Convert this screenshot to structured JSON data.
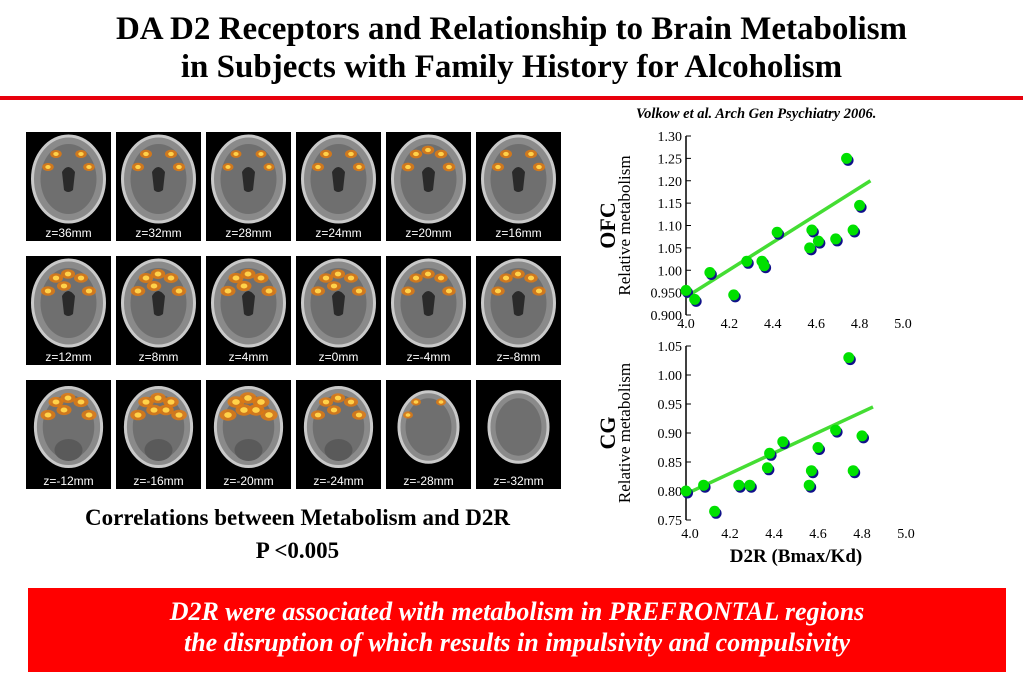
{
  "title": {
    "line1": "DA D2 Receptors and Relationship to Brain Metabolism",
    "line2": "in Subjects with Family History for Alcoholism"
  },
  "citation": "Volkow et al. Arch Gen Psychiatry 2006.",
  "brain_slices": [
    {
      "label": "z=36mm",
      "activation": 0.35
    },
    {
      "label": "z=32mm",
      "activation": 0.4
    },
    {
      "label": "z=28mm",
      "activation": 0.3
    },
    {
      "label": "z=24mm",
      "activation": 0.4
    },
    {
      "label": "z=20mm",
      "activation": 0.45
    },
    {
      "label": "z=16mm",
      "activation": 0.4
    },
    {
      "label": "z=12mm",
      "activation": 0.6
    },
    {
      "label": "z=8mm",
      "activation": 0.65
    },
    {
      "label": "z=4mm",
      "activation": 0.7
    },
    {
      "label": "z=0mm",
      "activation": 0.6
    },
    {
      "label": "z=-4mm",
      "activation": 0.55
    },
    {
      "label": "z=-8mm",
      "activation": 0.55
    },
    {
      "label": "z=-12mm",
      "activation": 0.7
    },
    {
      "label": "z=-16mm",
      "activation": 0.75
    },
    {
      "label": "z=-20mm",
      "activation": 0.9
    },
    {
      "label": "z=-24mm",
      "activation": 0.6
    },
    {
      "label": "z=-28mm",
      "activation": 0.2
    },
    {
      "label": "z=-32mm",
      "activation": 0.0
    }
  ],
  "captions": {
    "line1": "Correlations between Metabolism and D2R",
    "line2": "P <0.005"
  },
  "chart_data": [
    {
      "type": "scatter",
      "region": "OFC",
      "ylabel": "Relative metabolism",
      "xlabel": "",
      "xlim": [
        4.0,
        5.0
      ],
      "ylim": [
        0.9,
        1.3
      ],
      "xticks": [
        "4.0",
        "4.2",
        "4.4",
        "4.6",
        "4.8",
        "5.0"
      ],
      "yticks": [
        "0.900",
        "0.950",
        "1.00",
        "1.05",
        "1.10",
        "1.15",
        "1.20",
        "1.25",
        "1.30"
      ],
      "point_color": "#00e000",
      "fit_line_color": "#44dd33",
      "grid": false,
      "points": [
        {
          "x": 4.0,
          "y": 0.955
        },
        {
          "x": 4.04,
          "y": 0.935
        },
        {
          "x": 4.11,
          "y": 0.995
        },
        {
          "x": 4.22,
          "y": 0.945
        },
        {
          "x": 4.28,
          "y": 1.02
        },
        {
          "x": 4.35,
          "y": 1.02
        },
        {
          "x": 4.36,
          "y": 1.01
        },
        {
          "x": 4.42,
          "y": 1.085
        },
        {
          "x": 4.57,
          "y": 1.05
        },
        {
          "x": 4.58,
          "y": 1.09
        },
        {
          "x": 4.61,
          "y": 1.065
        },
        {
          "x": 4.69,
          "y": 1.07
        },
        {
          "x": 4.74,
          "y": 1.25
        },
        {
          "x": 4.77,
          "y": 1.09
        },
        {
          "x": 4.8,
          "y": 1.145
        }
      ],
      "fit_line": [
        [
          4.0,
          0.94
        ],
        [
          4.85,
          1.2
        ]
      ]
    },
    {
      "type": "scatter",
      "region": "CG",
      "ylabel": "Relative metabolism",
      "xlabel": "D2R (Bmax/Kd)",
      "xlim": [
        4.0,
        5.0
      ],
      "ylim": [
        0.75,
        1.05
      ],
      "xticks": [
        "4.0",
        "4.2",
        "4.4",
        "4.6",
        "4.8",
        "5.0"
      ],
      "yticks": [
        "0.75",
        "0.80",
        "0.85",
        "0.90",
        "0.95",
        "1.00",
        "1.05"
      ],
      "point_color": "#00e000",
      "fit_line_color": "#44dd33",
      "grid": false,
      "points": [
        {
          "x": 4.0,
          "y": 0.8
        },
        {
          "x": 4.08,
          "y": 0.81
        },
        {
          "x": 4.13,
          "y": 0.765
        },
        {
          "x": 4.24,
          "y": 0.81
        },
        {
          "x": 4.29,
          "y": 0.81
        },
        {
          "x": 4.37,
          "y": 0.84
        },
        {
          "x": 4.38,
          "y": 0.865
        },
        {
          "x": 4.44,
          "y": 0.885
        },
        {
          "x": 4.56,
          "y": 0.81
        },
        {
          "x": 4.57,
          "y": 0.835
        },
        {
          "x": 4.6,
          "y": 0.875
        },
        {
          "x": 4.68,
          "y": 0.905
        },
        {
          "x": 4.74,
          "y": 1.03
        },
        {
          "x": 4.76,
          "y": 0.835
        },
        {
          "x": 4.8,
          "y": 0.895
        }
      ],
      "fit_line": [
        [
          4.0,
          0.795
        ],
        [
          4.85,
          0.945
        ]
      ]
    }
  ],
  "banner": {
    "line1": "D2R were associated with metabolism in PREFRONTAL regions",
    "line2": "the disruption of which results in impulsivity and compulsivity"
  }
}
